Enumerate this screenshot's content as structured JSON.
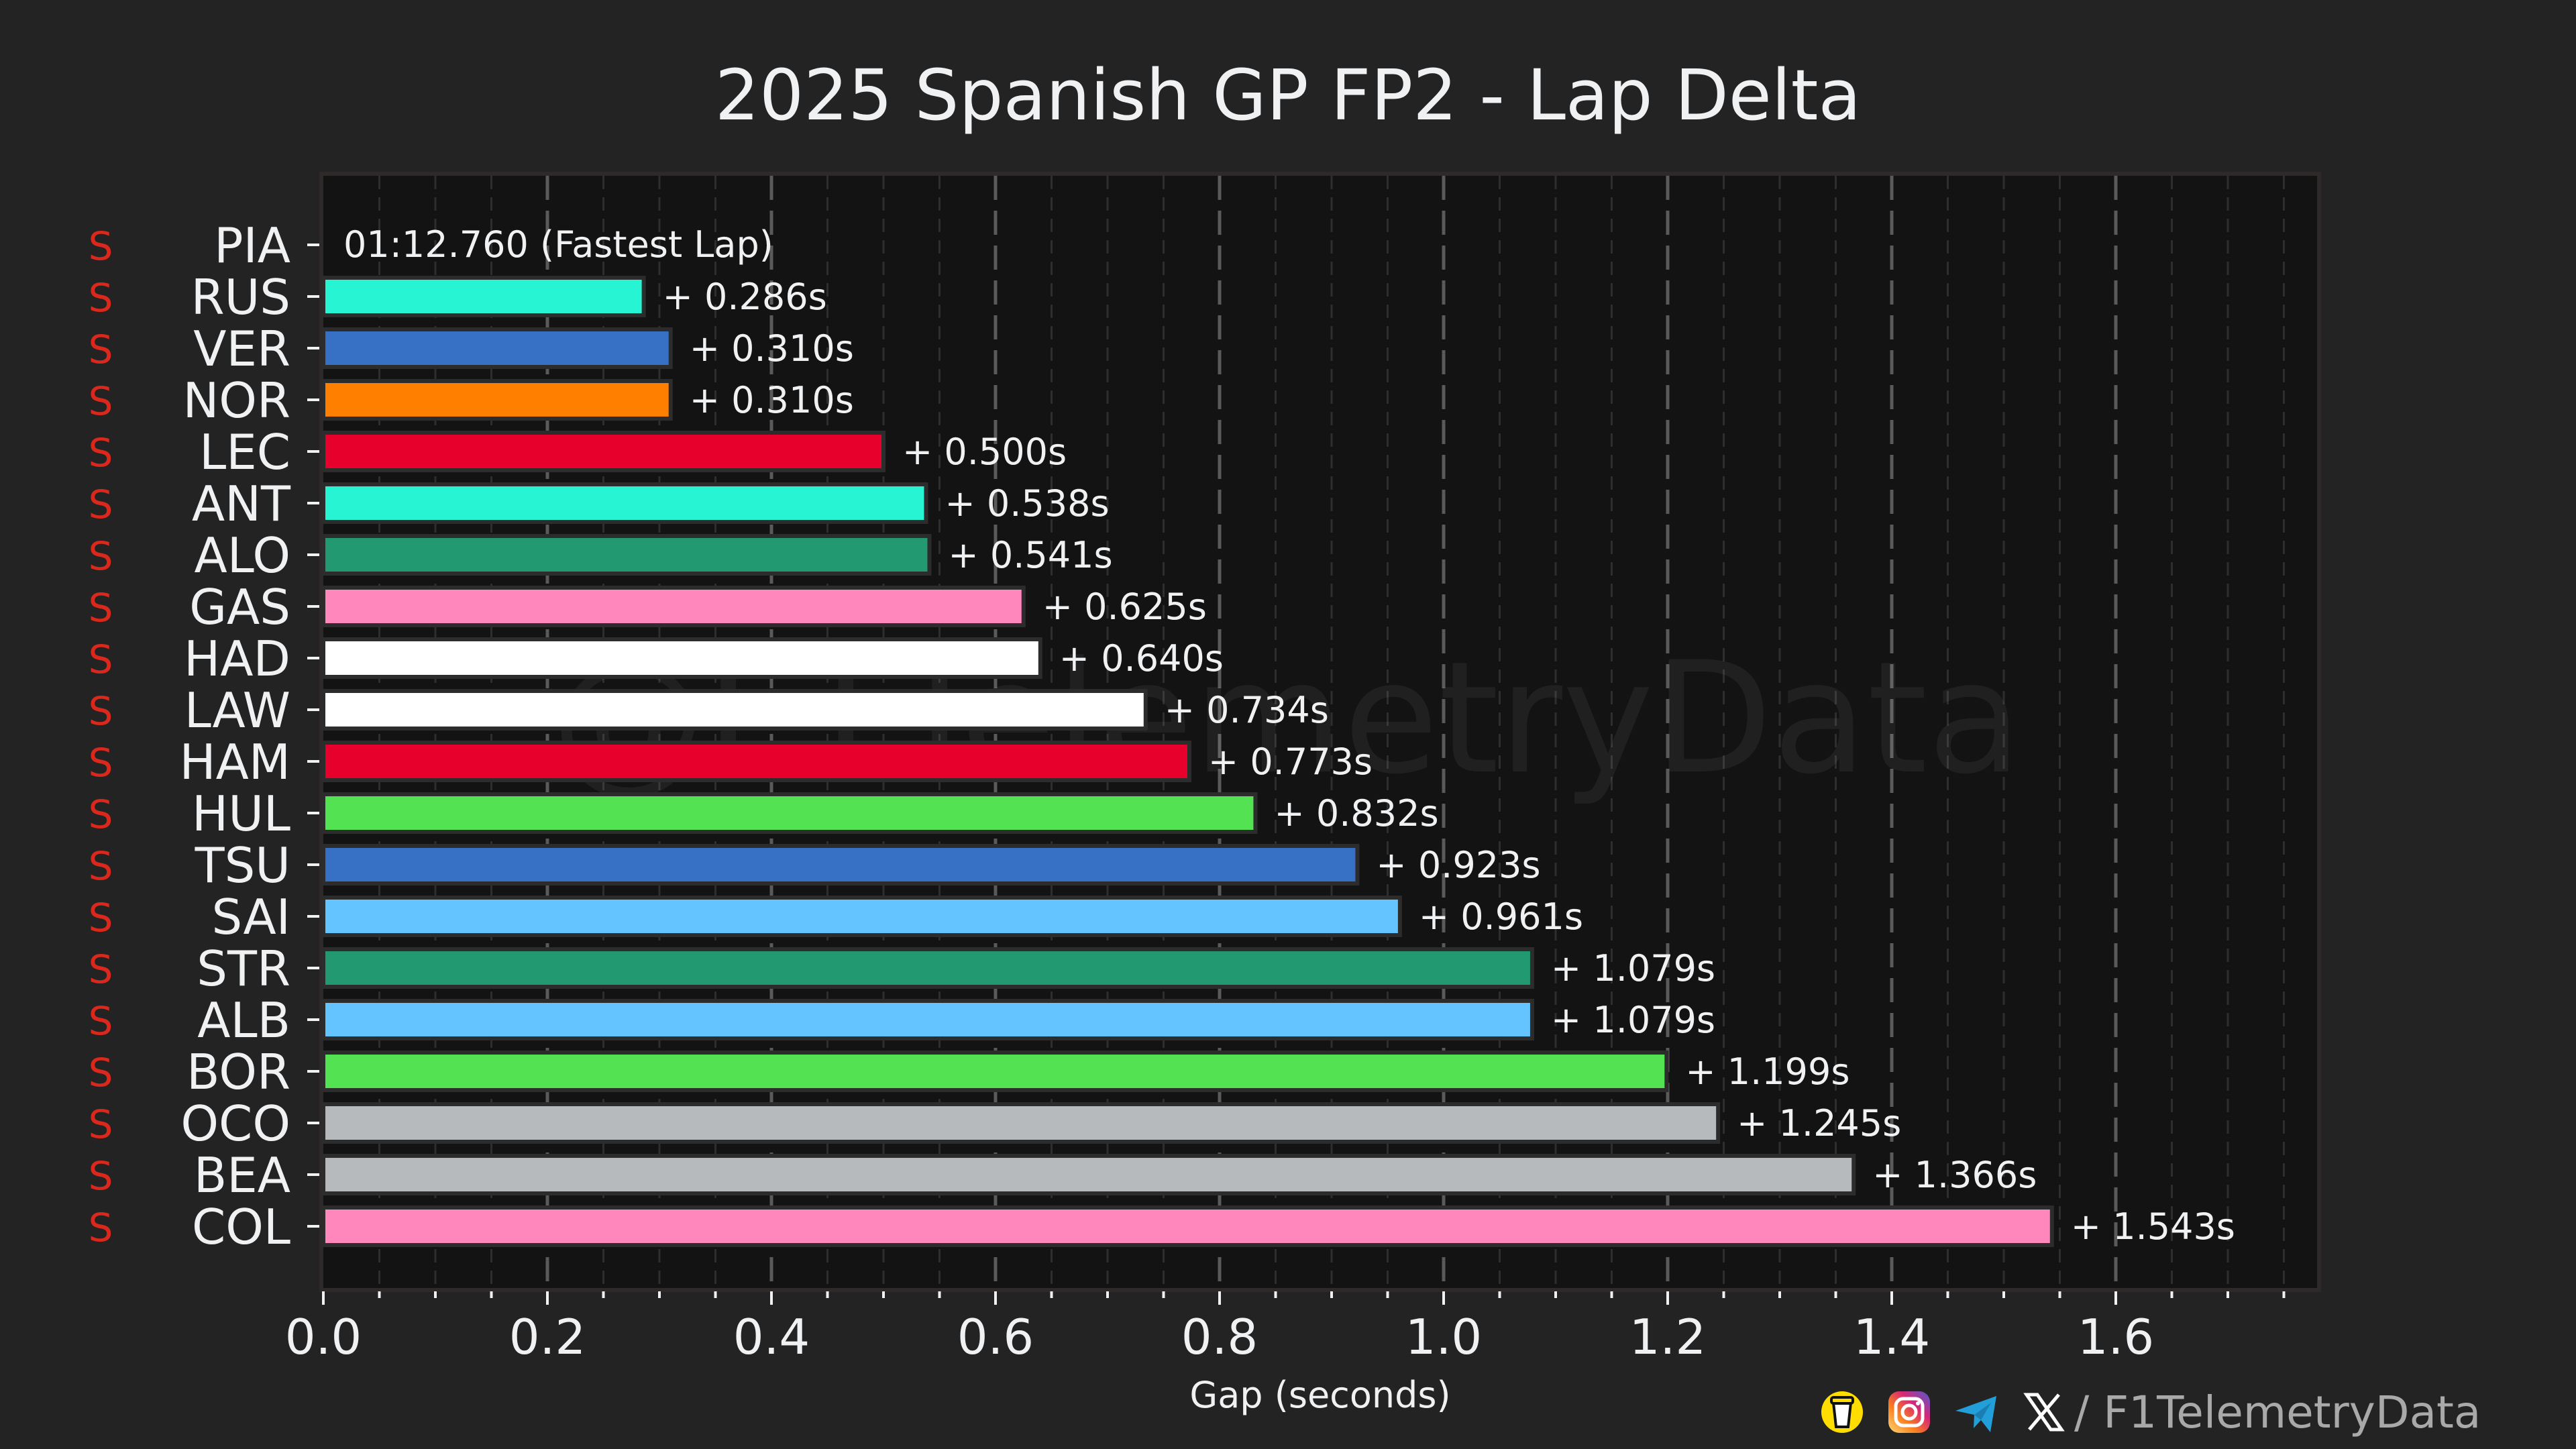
{
  "chart_data": {
    "type": "bar",
    "orientation": "horizontal",
    "title": "2025 Spanish GP FP2 - Lap Delta",
    "xlabel": "Gap (seconds)",
    "ylabel": "",
    "xlim": [
      0.0,
      1.78
    ],
    "x_ticks": [
      0.0,
      0.2,
      0.4,
      0.6,
      0.8,
      1.0,
      1.2,
      1.4,
      1.6
    ],
    "x_tick_labels": [
      "0.0",
      "0.2",
      "0.4",
      "0.6",
      "0.8",
      "1.0",
      "1.2",
      "1.4",
      "1.6"
    ],
    "x_minor_step": 0.05,
    "grid": true,
    "fastest_lap_label": "01:12.760 (Fastest Lap)",
    "watermark": "@F1TelemetryData",
    "categories": [
      "PIA",
      "RUS",
      "VER",
      "NOR",
      "LEC",
      "ANT",
      "ALO",
      "GAS",
      "HAD",
      "LAW",
      "HAM",
      "HUL",
      "TSU",
      "SAI",
      "STR",
      "ALB",
      "BOR",
      "OCO",
      "BEA",
      "COL"
    ],
    "tyres": [
      "S",
      "S",
      "S",
      "S",
      "S",
      "S",
      "S",
      "S",
      "S",
      "S",
      "S",
      "S",
      "S",
      "S",
      "S",
      "S",
      "S",
      "S",
      "S",
      "S"
    ],
    "values": [
      0.0,
      0.286,
      0.31,
      0.31,
      0.5,
      0.538,
      0.541,
      0.625,
      0.64,
      0.734,
      0.773,
      0.832,
      0.923,
      0.961,
      1.079,
      1.079,
      1.199,
      1.245,
      1.366,
      1.543
    ],
    "value_labels": [
      "",
      "+ 0.286s",
      "+ 0.310s",
      "+ 0.310s",
      "+ 0.500s",
      "+ 0.538s",
      "+ 0.541s",
      "+ 0.625s",
      "+ 0.640s",
      "+ 0.734s",
      "+ 0.773s",
      "+ 0.832s",
      "+ 0.923s",
      "+ 0.961s",
      "+ 1.079s",
      "+ 1.079s",
      "+ 1.199s",
      "+ 1.245s",
      "+ 1.366s",
      "+ 1.543s"
    ],
    "colors": [
      "#FF8000",
      "#27F4D2",
      "#3671C6",
      "#FF8000",
      "#E8002D",
      "#27F4D2",
      "#229971",
      "#FF87BC",
      "#FFFFFF",
      "#FFFFFF",
      "#E8002D",
      "#52E252",
      "#3671C6",
      "#64C4FF",
      "#229971",
      "#64C4FF",
      "#52E252",
      "#B6BABD",
      "#B6BABD",
      "#FF87BC"
    ]
  },
  "style": {
    "background": "#232323",
    "plot_background": "#131313",
    "tyre_color": "#DA291C"
  },
  "footer": {
    "icons": [
      "buy-me-a-coffee-icon",
      "instagram-icon",
      "telegram-icon",
      "x-icon"
    ],
    "handle": "/ F1TelemetryData"
  }
}
